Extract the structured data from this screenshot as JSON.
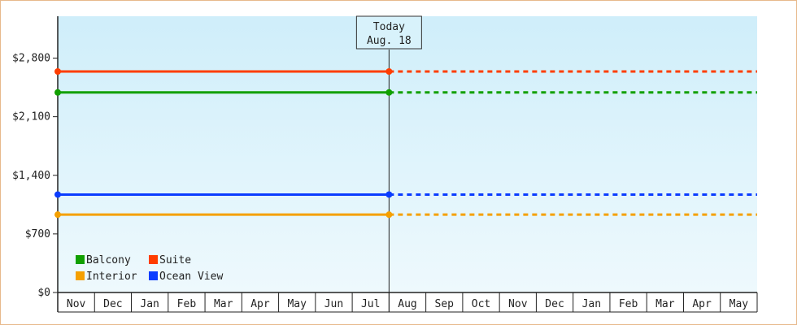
{
  "chart_data": {
    "type": "line",
    "title": "",
    "xlabel": "",
    "ylabel": "",
    "ylim": [
      0,
      3300
    ],
    "y_ticks": [
      {
        "value": 0,
        "label": "$0"
      },
      {
        "value": 700,
        "label": "$700"
      },
      {
        "value": 1400,
        "label": "$1,400"
      },
      {
        "value": 2100,
        "label": "$2,100"
      },
      {
        "value": 2800,
        "label": "$2,800"
      }
    ],
    "months": [
      "Nov",
      "Dec",
      "Jan",
      "Feb",
      "Mar",
      "Apr",
      "May",
      "Jun",
      "Jul",
      "Aug",
      "Sep",
      "Oct",
      "Nov",
      "Dec",
      "Jan",
      "Feb",
      "Mar",
      "Apr",
      "May"
    ],
    "today": {
      "label_line1": "Today",
      "label_line2": "Aug. 18",
      "month_index": 9
    },
    "series": [
      {
        "name": "Suite",
        "color": "#ff3d00",
        "value": 2640
      },
      {
        "name": "Balcony",
        "color": "#11a000",
        "value": 2390
      },
      {
        "name": "Ocean View",
        "color": "#0a3cff",
        "value": 1170
      },
      {
        "name": "Interior",
        "color": "#f5a000",
        "value": 930
      }
    ],
    "legend": {
      "placement": "bottom-left",
      "order": [
        "Balcony",
        "Suite",
        "Interior",
        "Ocean View"
      ]
    },
    "colors": {
      "plot_bg_top": "#cfeefa",
      "plot_bg_bottom": "#eef9fd",
      "frame_border": "#e7b98c",
      "axis": "#222222"
    }
  }
}
